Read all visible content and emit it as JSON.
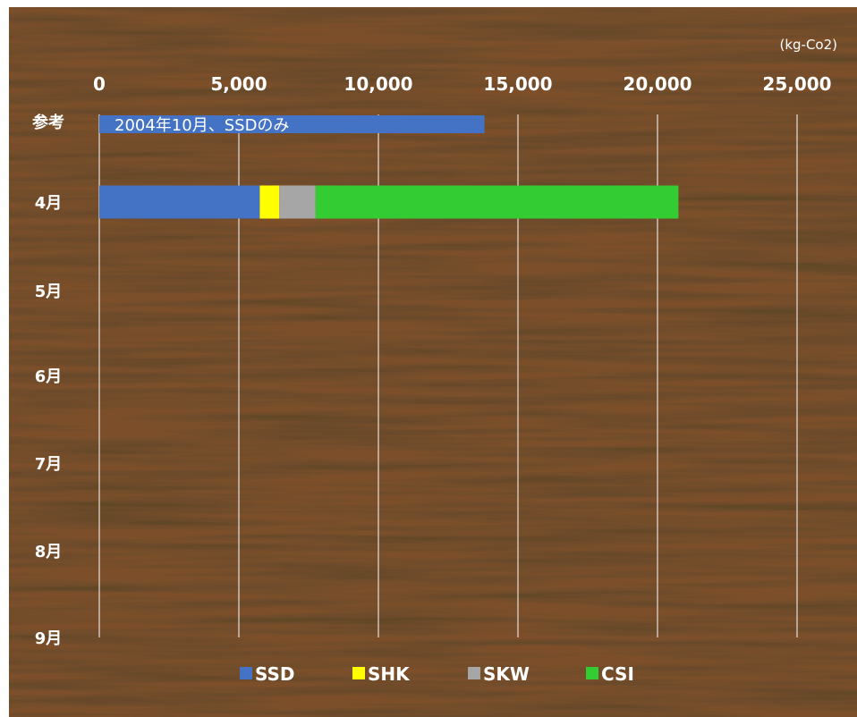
{
  "chart_data": {
    "type": "bar",
    "orientation": "horizontal",
    "stacked": true,
    "unit_label": "(kg-Co2)",
    "x_ticks": [
      "0",
      "5,000",
      "10,000",
      "15,000",
      "20,000",
      "25,000"
    ],
    "xlim": [
      0,
      25000
    ],
    "categories": [
      "参考",
      "4月",
      "5月",
      "6月",
      "7月",
      "8月",
      "9月"
    ],
    "series": [
      {
        "name": "SSD",
        "color": "#4472C4",
        "values": [
          13800,
          5750,
          null,
          null,
          null,
          null,
          null
        ]
      },
      {
        "name": "SHK",
        "color": "#FFFF00",
        "values": [
          null,
          700,
          null,
          null,
          null,
          null,
          null
        ]
      },
      {
        "name": "SKW",
        "color": "#A6A6A6",
        "values": [
          null,
          1300,
          null,
          null,
          null,
          null,
          null
        ]
      },
      {
        "name": "CSI",
        "color": "#33CC33",
        "values": [
          null,
          13000,
          null,
          null,
          null,
          null,
          null
        ]
      }
    ],
    "annotations": [
      {
        "category": "参考",
        "text": "2004年10月、SSDのみ"
      }
    ],
    "grid": true,
    "legend_position": "bottom"
  }
}
